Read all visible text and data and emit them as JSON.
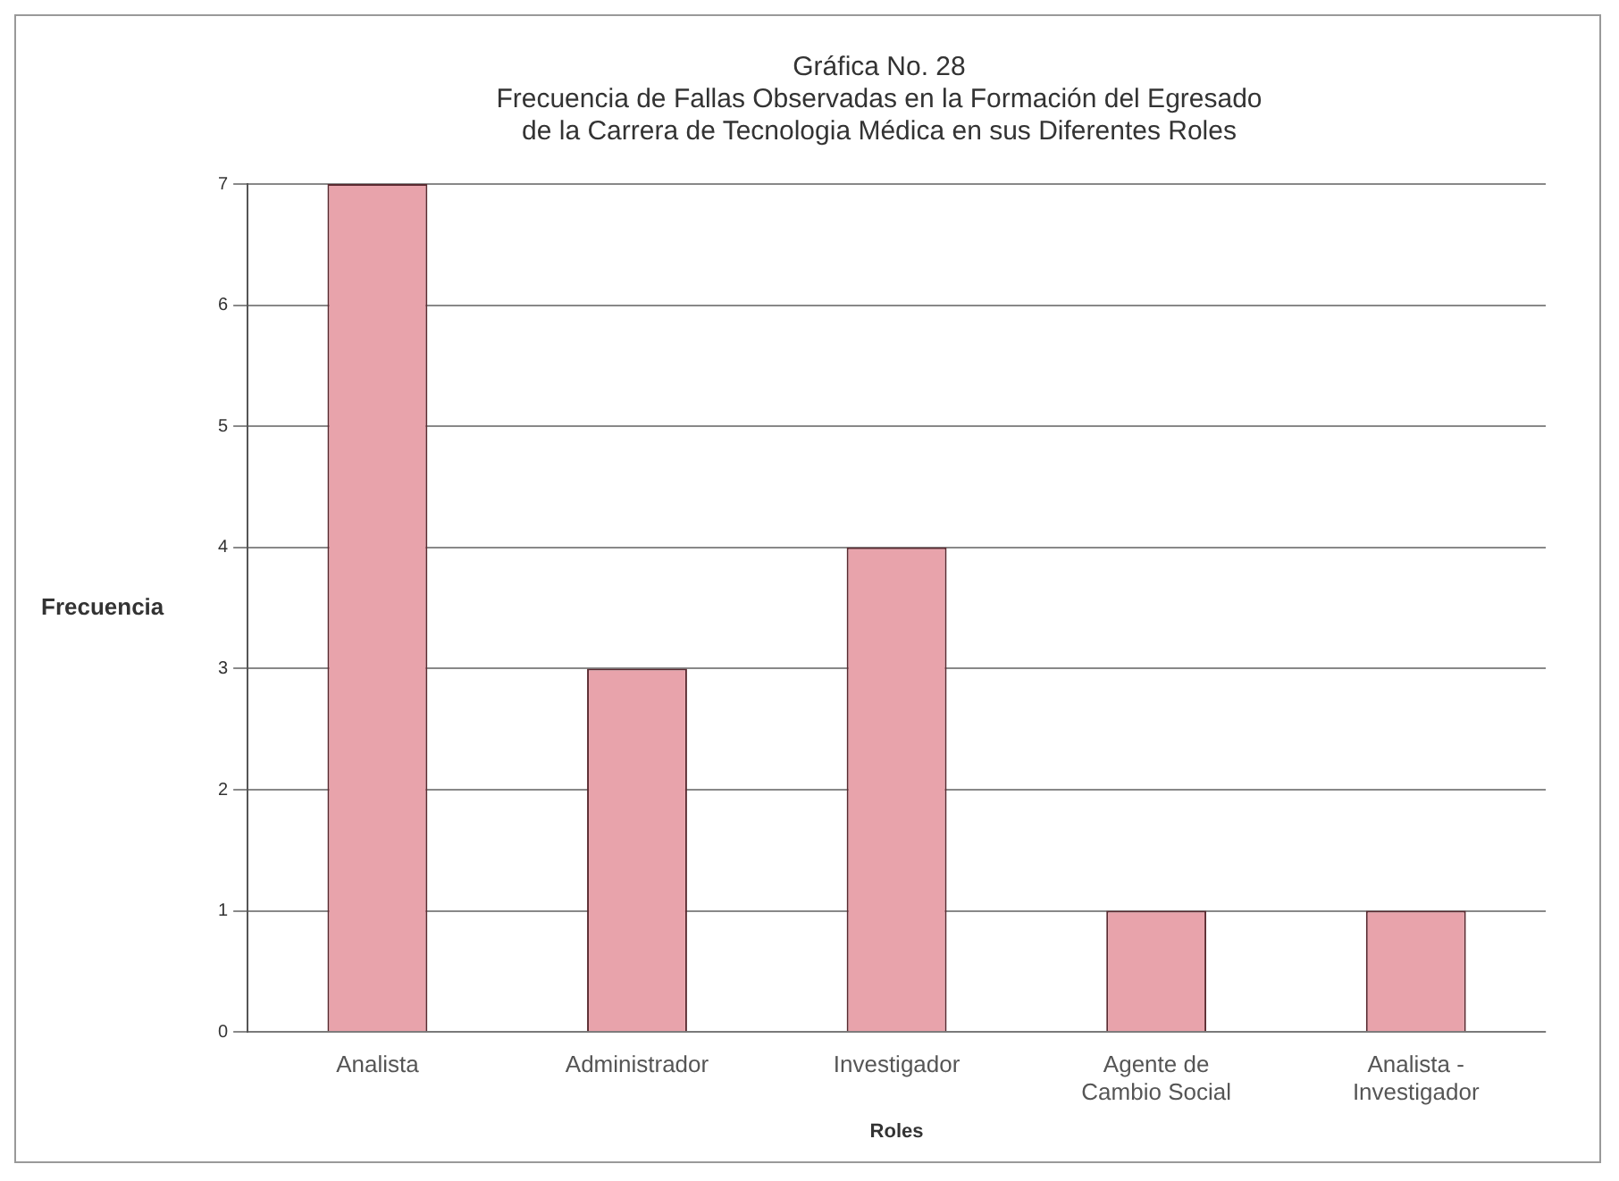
{
  "chart_data": {
    "type": "bar",
    "title": "Gráfica No. 28\nFrecuencia de Fallas Observadas en la Formación del Egresado\nde la Carrera de Tecnologia Médica en sus Diferentes Roles",
    "xlabel": "Roles",
    "ylabel": "Frecuencia",
    "categories": [
      "Analista",
      "Administrador",
      "Investigador",
      "Agente de\nCambio Social",
      "Analista -\nInvestigador"
    ],
    "values": [
      7,
      3,
      4,
      1,
      1
    ],
    "color": "#e8a3ab",
    "ylim": [
      0,
      7
    ],
    "yticks": [
      0,
      1,
      2,
      3,
      4,
      5,
      6,
      7
    ],
    "grid": "y"
  }
}
